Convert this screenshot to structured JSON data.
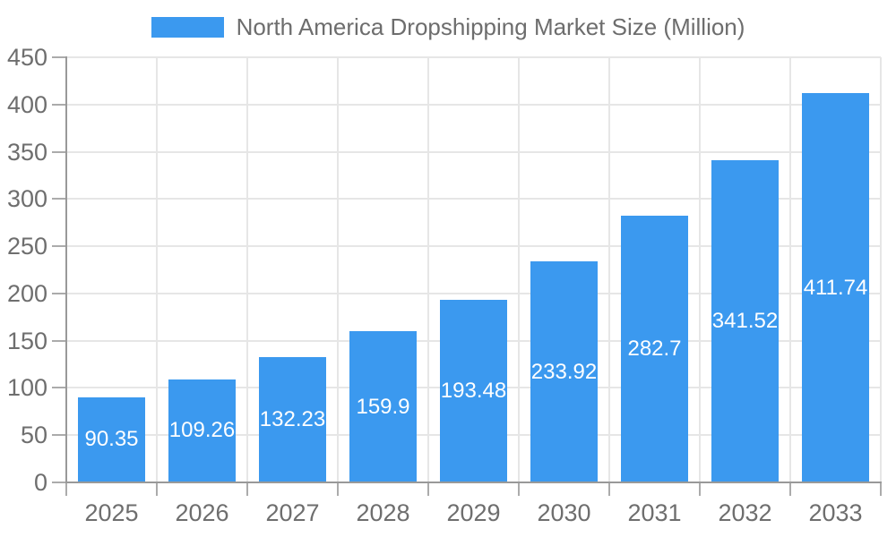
{
  "chart_data": {
    "type": "bar",
    "title": "North America Dropshipping Market Size (Million)",
    "categories": [
      "2025",
      "2026",
      "2027",
      "2028",
      "2029",
      "2030",
      "2031",
      "2032",
      "2033"
    ],
    "series": [
      {
        "name": "North America Dropshipping Market Size (Million)",
        "values": [
          90.35,
          109.26,
          132.23,
          159.9,
          193.48,
          233.92,
          282.7,
          341.52,
          411.74
        ],
        "value_labels": [
          "90.35",
          "109.26",
          "132.23",
          "159.9",
          "193.48",
          "233.92",
          "282.7",
          "341.52",
          "411.74"
        ]
      }
    ],
    "xlabel": "",
    "ylabel": "",
    "ylim": [
      0,
      450
    ],
    "ytick_interval": 50,
    "ytick_labels": [
      "0",
      "50",
      "100",
      "150",
      "200",
      "250",
      "300",
      "350",
      "400",
      "450"
    ],
    "grid": "horizontal and vertical light gridlines",
    "legend_position": "top-center",
    "value_label_position": "inside-center"
  },
  "colors": {
    "background": "#FFFFFF",
    "bar": "#3B99EF",
    "value_label_text": "#FFFFFF",
    "axis_line": "#999999",
    "tick": "#ABABAB",
    "grid_line": "#E6E6E6",
    "axis_label_text": "#6E6E6E",
    "legend_text": "#6D6D6D"
  }
}
